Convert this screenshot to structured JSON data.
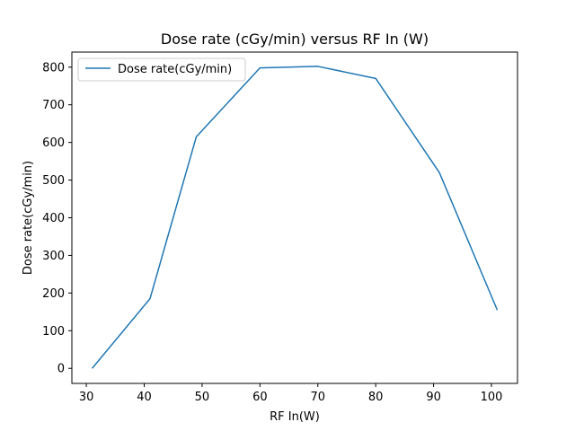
{
  "chart_data": {
    "type": "line",
    "title": "Dose rate (cGy/min) versus RF In (W)",
    "xlabel": "RF In(W)",
    "ylabel": "Dose rate(cGy/min)",
    "xlim": [
      27.5,
      104.5
    ],
    "ylim": [
      -40,
      840
    ],
    "xticks": [
      30,
      40,
      50,
      60,
      70,
      80,
      90,
      100
    ],
    "yticks": [
      0,
      100,
      200,
      300,
      400,
      500,
      600,
      700,
      800
    ],
    "grid": false,
    "legend_position": "top-left",
    "series": [
      {
        "name": "Dose rate(cGy/min)",
        "color": "#1f77b4",
        "x": [
          31,
          41,
          49,
          60,
          70,
          80,
          91,
          101
        ],
        "y": [
          0,
          185,
          615,
          798,
          802,
          770,
          520,
          155
        ]
      }
    ]
  }
}
